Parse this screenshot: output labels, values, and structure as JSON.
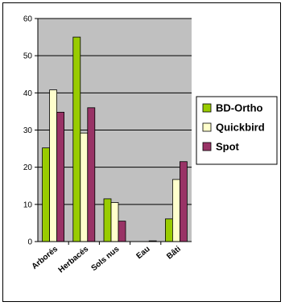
{
  "chart_data": {
    "type": "bar",
    "categories": [
      "Arborés",
      "Herbacés",
      "Sols nus",
      "Eau",
      "Bâti"
    ],
    "series": [
      {
        "name": "BD-Ortho",
        "color": "#99cc00",
        "values": [
          25.2,
          55.0,
          11.5,
          0.0,
          6.1
        ]
      },
      {
        "name": "Quickbird",
        "color": "#ffffcc",
        "values": [
          40.8,
          29.2,
          10.5,
          0.0,
          16.7
        ]
      },
      {
        "name": "Spot",
        "color": "#993366",
        "values": [
          34.8,
          36.0,
          5.5,
          0.2,
          21.5
        ]
      }
    ],
    "ylim": [
      0,
      60
    ],
    "yticks": [
      0,
      10,
      20,
      30,
      40,
      50,
      60
    ],
    "grid": true,
    "plot_background": "#c0c0c0",
    "legend_position": "right"
  }
}
